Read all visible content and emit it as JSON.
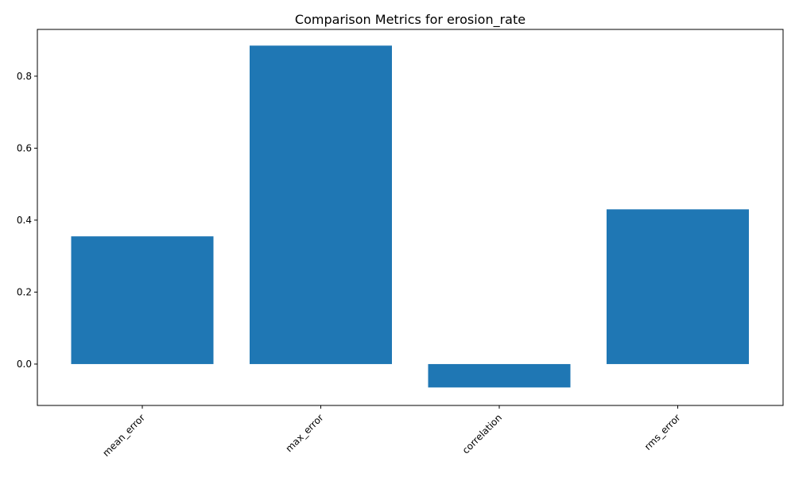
{
  "chart_data": {
    "type": "bar",
    "title": "Comparison Metrics for erosion_rate",
    "xlabel": "",
    "ylabel": "",
    "categories": [
      "mean_error",
      "max_error",
      "correlation",
      "rms_error"
    ],
    "values": [
      0.355,
      0.885,
      -0.065,
      0.43
    ],
    "ylim": [
      -0.115,
      0.93
    ],
    "yticks": [
      0.0,
      0.2,
      0.4,
      0.6,
      0.8
    ],
    "ytick_labels": [
      "0.0",
      "0.2",
      "0.4",
      "0.6",
      "0.8"
    ],
    "grid": false,
    "legend": "none",
    "bar_color": "#1f77b4"
  }
}
